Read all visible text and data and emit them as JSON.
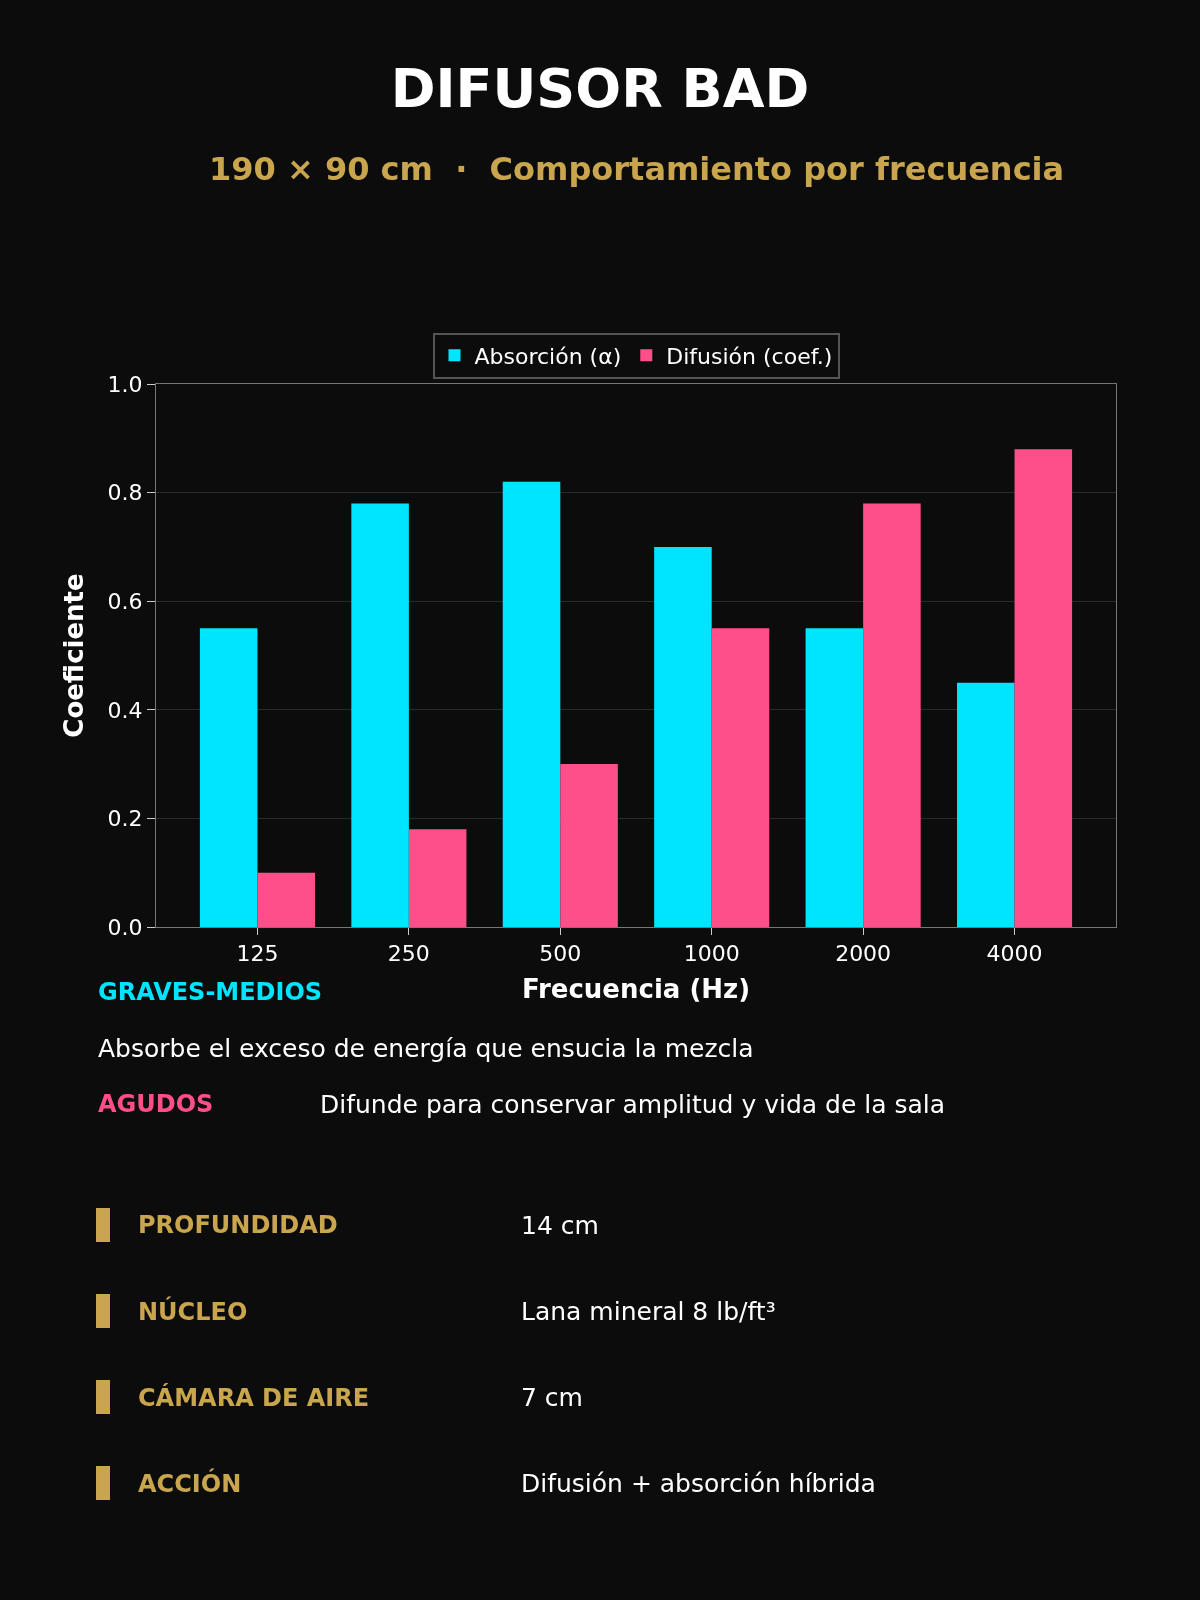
{
  "chart_data": {
    "type": "bar",
    "title": "DIFUSOR BAD",
    "subtitle": "190 × 90 cm  ·  Comportamiento por frecuencia",
    "xlabel": "Frecuencia (Hz)",
    "ylabel": "Coeficiente",
    "categories": [
      "125",
      "250",
      "500",
      "1000",
      "2000",
      "4000"
    ],
    "series": [
      {
        "name": "Absorción (α)",
        "color": "#00e5ff",
        "values": [
          0.55,
          0.78,
          0.82,
          0.7,
          0.55,
          0.45
        ]
      },
      {
        "name": "Difusión (coef.)",
        "color": "#ff4f8b",
        "values": [
          0.1,
          0.18,
          0.3,
          0.55,
          0.78,
          0.88
        ]
      }
    ],
    "ylim": [
      0,
      1
    ],
    "yticks": [
      {
        "value": 0,
        "label": "0.0"
      },
      {
        "value": 0.2,
        "label": "0.2"
      },
      {
        "value": 0.4,
        "label": "0.4"
      },
      {
        "value": 0.6,
        "label": "0.6"
      },
      {
        "value": 0.8,
        "label": "0.8"
      },
      {
        "value": 1,
        "label": "1.0"
      }
    ],
    "grid": "y",
    "legend": "top",
    "annotations": [
      "GRAVES-MEDIOS",
      "Absorbe el exceso de energía que ensucia la mezcla",
      "AGUDOS",
      "Difunde para conservar amplitud y vida de la sala",
      "PROFUNDIDAD",
      "14 cm",
      "NÚCLEO",
      "Lana mineral 8 lb/ft³",
      "CÁMARA DE AIRE",
      "7 cm",
      "ACCIÓN",
      "Difusión + absorción híbrida"
    ]
  }
}
